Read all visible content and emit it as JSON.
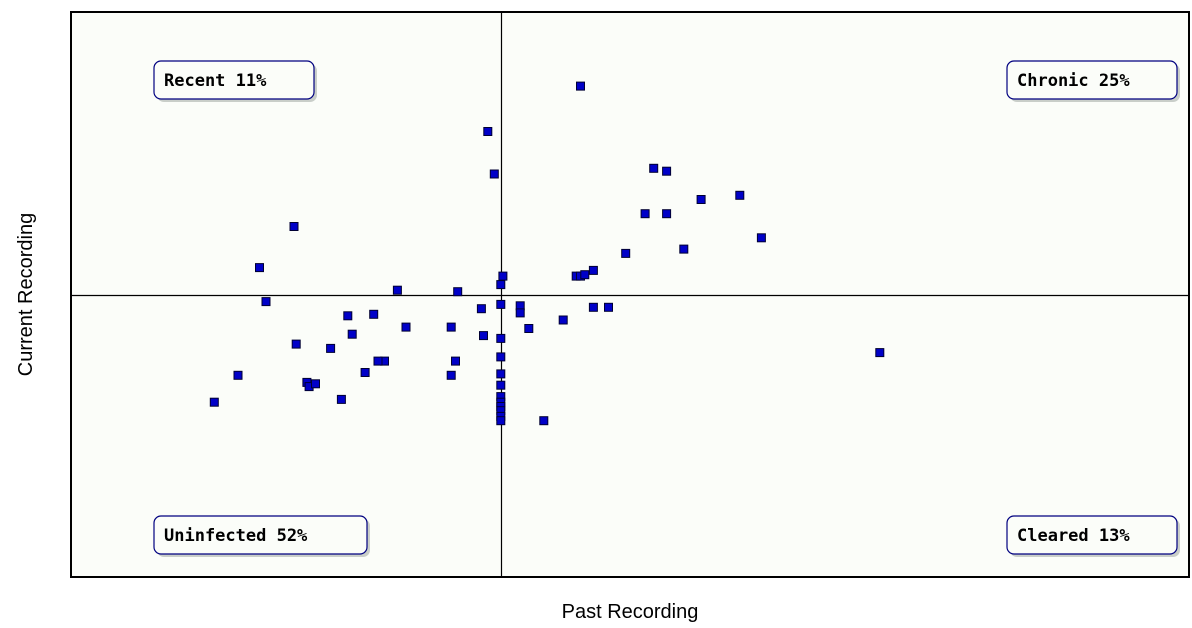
{
  "chart_data": {
    "type": "scatter",
    "title": "",
    "xlabel": "Past Recording",
    "ylabel": "Current Recording",
    "xlim": [
      -100,
      160
    ],
    "ylim": [
      -100,
      100
    ],
    "grid": false,
    "divider": {
      "x": 0,
      "y": 0
    },
    "quadrants": [
      {
        "id": "recent",
        "label": "Recent 11%",
        "position": "top-left"
      },
      {
        "id": "chronic",
        "label": "Chronic 25%",
        "position": "top-right"
      },
      {
        "id": "uninfected",
        "label": "Uninfected 52%",
        "position": "bottom-left"
      },
      {
        "id": "cleared",
        "label": "Cleared 13%",
        "position": "bottom-right"
      }
    ],
    "colors": {
      "marker_fill": "#0000c8",
      "marker_stroke": "#000033",
      "plot_background": "#fbfdf9",
      "label_fill": "#fbfdf9",
      "label_shadow": "#c9cec9"
    },
    "points": [
      [
        18.5,
        73.5
      ],
      [
        -3,
        57.5
      ],
      [
        -1.5,
        42.5
      ],
      [
        35.5,
        44.5
      ],
      [
        38.5,
        43.5
      ],
      [
        -48,
        24
      ],
      [
        -56,
        9.5
      ],
      [
        -54.5,
        -2.5
      ],
      [
        33.5,
        28.5
      ],
      [
        38.5,
        28.5
      ],
      [
        46.5,
        33.5
      ],
      [
        55.5,
        35
      ],
      [
        29,
        14.5
      ],
      [
        42.5,
        16
      ],
      [
        60.5,
        20
      ],
      [
        17.5,
        6.5
      ],
      [
        18.5,
        6.5
      ],
      [
        19.5,
        7
      ],
      [
        21.5,
        8.5
      ],
      [
        -24,
        1.5
      ],
      [
        -10,
        1
      ],
      [
        0.5,
        6.5
      ],
      [
        0,
        3.5
      ],
      [
        -29.5,
        -7
      ],
      [
        -35.5,
        -7.5
      ],
      [
        -34.5,
        -14
      ],
      [
        -22,
        -11.5
      ],
      [
        -11.5,
        -11.5
      ],
      [
        -4.5,
        -5
      ],
      [
        0,
        -3.5
      ],
      [
        4.5,
        -4
      ],
      [
        4.5,
        -6.5
      ],
      [
        14.5,
        -9
      ],
      [
        21.5,
        -4.5
      ],
      [
        25,
        -4.5
      ],
      [
        6.5,
        -12
      ],
      [
        -47.5,
        -17.5
      ],
      [
        -39.5,
        -19
      ],
      [
        -27,
        -23.5
      ],
      [
        -28.5,
        -23.5
      ],
      [
        -31.5,
        -27.5
      ],
      [
        -4,
        -14.5
      ],
      [
        0,
        -15.5
      ],
      [
        -10.5,
        -23.5
      ],
      [
        -11.5,
        -28.5
      ],
      [
        0,
        -22
      ],
      [
        0,
        -28
      ],
      [
        -61,
        -28.5
      ],
      [
        -45,
        -31
      ],
      [
        -44.5,
        -32.5
      ],
      [
        -43,
        -31.5
      ],
      [
        -37,
        -37
      ],
      [
        -66.5,
        -38
      ],
      [
        0,
        -32
      ],
      [
        0,
        -36
      ],
      [
        0,
        -38
      ],
      [
        0,
        -39.5
      ],
      [
        0,
        -41
      ],
      [
        0,
        -43
      ],
      [
        0,
        -44.5
      ],
      [
        10,
        -44.5
      ],
      [
        88,
        -20.5
      ]
    ]
  }
}
